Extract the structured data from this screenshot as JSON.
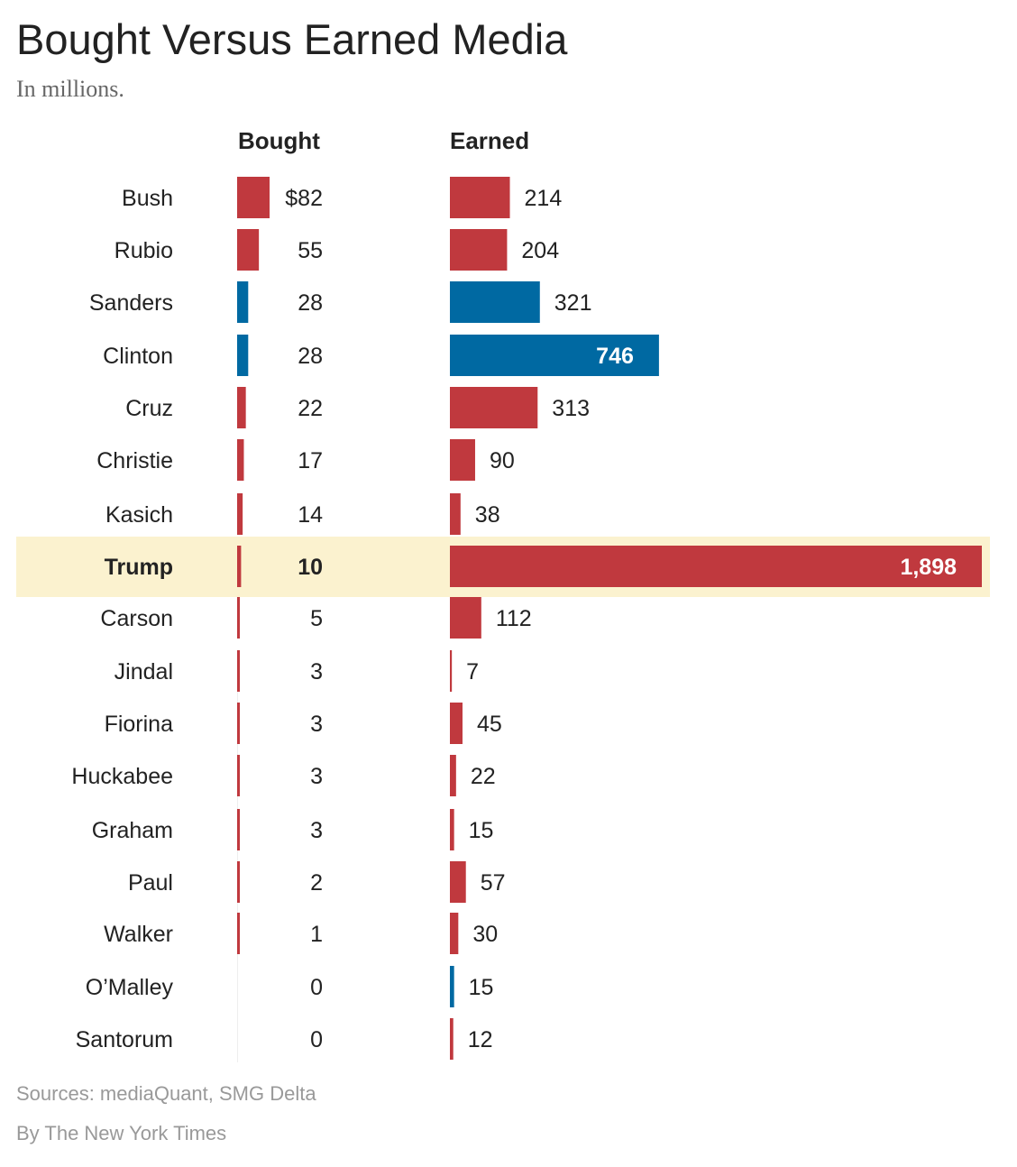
{
  "title": "Bought Versus Earned Media",
  "subtitle": "In millions.",
  "source": "Sources: mediaQuant, SMG Delta",
  "credit": "By The New York Times",
  "colors": {
    "republican": "#c0393e",
    "democrat": "#0069a2",
    "highlight_background": "#fbf2cf",
    "bought_axis": "#eeeeee"
  },
  "chart_data": {
    "type": "bar",
    "title": "Bought Versus Earned Media",
    "subtitle": "In millions.",
    "highlighted_category": "Trump",
    "value_prefix_first_row": "$",
    "categories": [
      "Bush",
      "Rubio",
      "Sanders",
      "Clinton",
      "Cruz",
      "Christie",
      "Kasich",
      "Trump",
      "Carson",
      "Jindal",
      "Fiorina",
      "Huckabee",
      "Graham",
      "Paul",
      "Walker",
      "O’Malley",
      "Santorum"
    ],
    "party": [
      "republican",
      "republican",
      "democrat",
      "democrat",
      "republican",
      "republican",
      "republican",
      "republican",
      "republican",
      "republican",
      "republican",
      "republican",
      "republican",
      "republican",
      "republican",
      "democrat",
      "republican"
    ],
    "series": [
      {
        "name": "Bought",
        "values": [
          82,
          55,
          28,
          28,
          22,
          17,
          14,
          10,
          5,
          3,
          3,
          3,
          3,
          2,
          1,
          0,
          0
        ],
        "labels": [
          "$82",
          "55",
          "28",
          "28",
          "22",
          "17",
          "14",
          "10",
          "5",
          "3",
          "3",
          "3",
          "3",
          "2",
          "1",
          "0",
          "0"
        ]
      },
      {
        "name": "Earned",
        "values": [
          214,
          204,
          321,
          746,
          313,
          90,
          38,
          1898,
          112,
          7,
          45,
          22,
          15,
          57,
          30,
          15,
          12
        ],
        "labels": [
          "214",
          "204",
          "321",
          "746",
          "313",
          "90",
          "38",
          "1,898",
          "112",
          "7",
          "45",
          "22",
          "15",
          "57",
          "30",
          "15",
          "12"
        ]
      }
    ],
    "grid": false,
    "legend": "none"
  }
}
